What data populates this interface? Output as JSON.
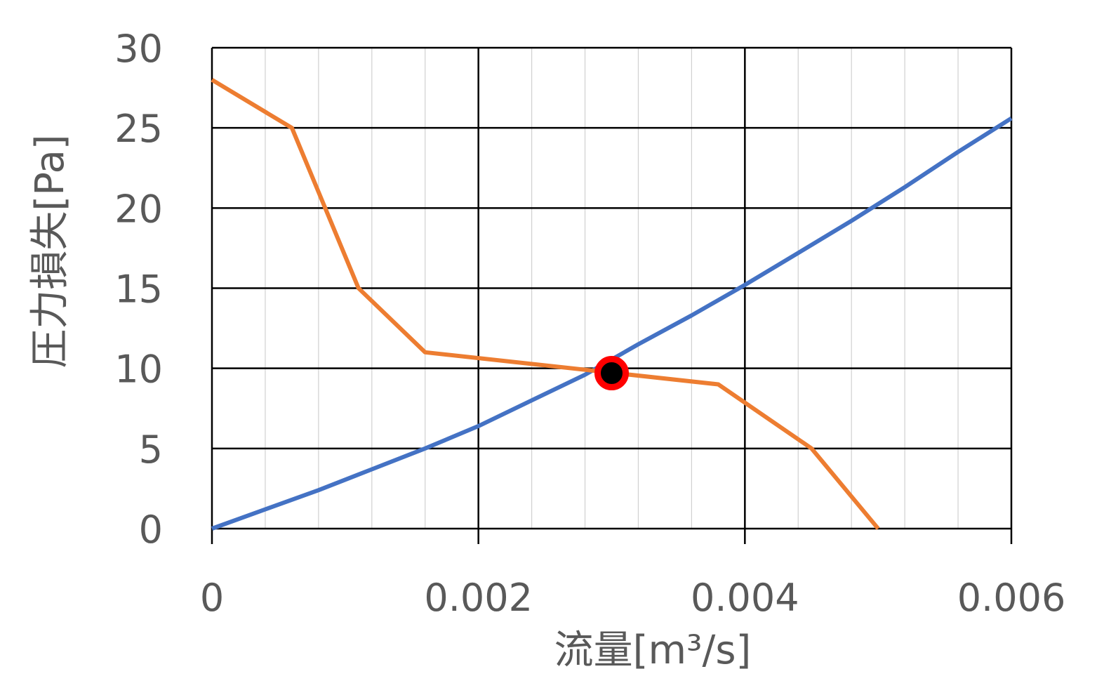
{
  "chart_data": {
    "type": "line",
    "xlabel": "流量[m³/s]",
    "ylabel": "圧力損失[Pa]",
    "xlim": [
      0,
      0.006
    ],
    "ylim": [
      0,
      30
    ],
    "x_ticks": [
      "0",
      "0.002",
      "0.004",
      "0.006"
    ],
    "y_ticks": [
      "0",
      "5",
      "10",
      "15",
      "20",
      "25",
      "30"
    ],
    "grid": {
      "major": true,
      "minor_x": true
    },
    "series": [
      {
        "color": "#4472C4",
        "x": [
          0,
          0.0004,
          0.0008,
          0.0012,
          0.0016,
          0.002,
          0.0024,
          0.0028,
          0.0032,
          0.0036,
          0.004,
          0.0044,
          0.0048,
          0.0052,
          0.0056,
          0.006
        ],
        "y": [
          0,
          1.2,
          2.4,
          3.7,
          5.0,
          6.4,
          8.0,
          9.6,
          11.5,
          13.3,
          15.2,
          17.2,
          19.2,
          21.3,
          23.5,
          25.6
        ]
      },
      {
        "color": "#ED7D31",
        "x": [
          0,
          0.0006,
          0.0011,
          0.0016,
          0.0038,
          0.0045,
          0.005
        ],
        "y": [
          28,
          25,
          15,
          11,
          9,
          5,
          0
        ]
      }
    ],
    "annotations": [
      {
        "x": 0.003,
        "y": 9.7,
        "fill": "#000000",
        "stroke": "#FF0000"
      }
    ]
  }
}
